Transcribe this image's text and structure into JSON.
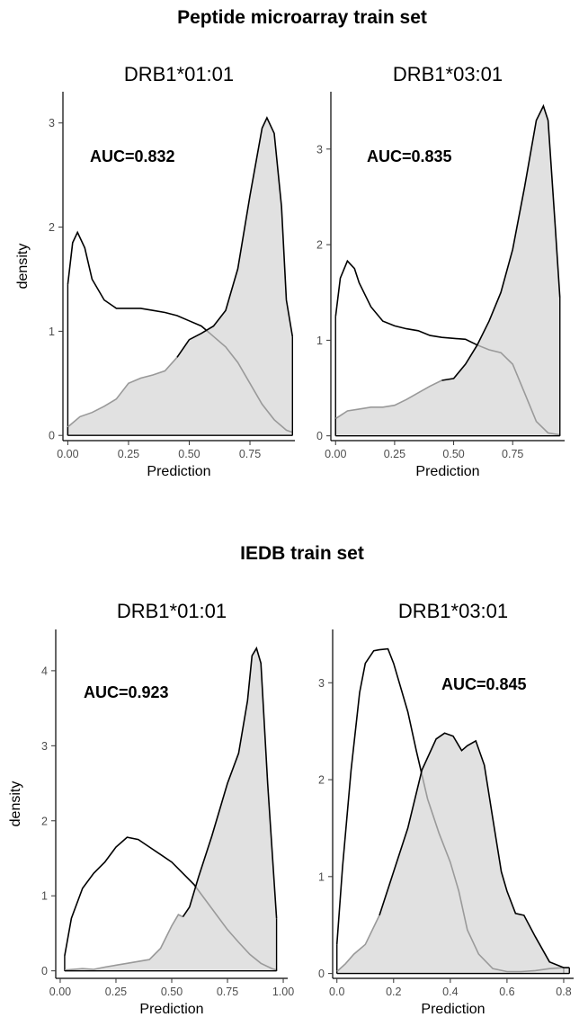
{
  "sections": [
    {
      "title": "Peptide microarray train set"
    },
    {
      "title": "IEDB train set"
    }
  ],
  "chart_data": [
    {
      "type": "area",
      "section": 0,
      "title": "DRB1*01:01",
      "xlabel": "Prediction",
      "ylabel": "density",
      "annotation": "AUC=0.832",
      "xlim": [
        -0.02,
        0.935
      ],
      "ylim": [
        -0.05,
        3.3
      ],
      "x_ticks": [
        0.0,
        0.25,
        0.5,
        0.75
      ],
      "x_tick_labels": [
        "0.00",
        "0.25",
        "0.50",
        "0.75"
      ],
      "y_ticks": [
        0,
        1,
        2,
        3
      ],
      "y_tick_labels": [
        "0",
        "1",
        "2",
        "3"
      ],
      "series": [
        {
          "x": [
            0.0,
            0.02,
            0.04,
            0.07,
            0.1,
            0.15,
            0.2,
            0.25,
            0.3,
            0.35,
            0.4,
            0.45,
            0.5,
            0.55,
            0.6,
            0.65,
            0.7,
            0.75,
            0.8,
            0.85,
            0.9,
            0.925
          ],
          "values": [
            1.45,
            1.85,
            1.95,
            1.8,
            1.5,
            1.3,
            1.22,
            1.22,
            1.22,
            1.2,
            1.18,
            1.15,
            1.1,
            1.05,
            0.95,
            0.85,
            0.7,
            0.5,
            0.3,
            0.15,
            0.05,
            0.03
          ],
          "fill": "#ffffff",
          "stroke": "#000000"
        },
        {
          "x": [
            0.0,
            0.05,
            0.1,
            0.15,
            0.2,
            0.25,
            0.3,
            0.35,
            0.4,
            0.45,
            0.5,
            0.55,
            0.6,
            0.65,
            0.7,
            0.75,
            0.8,
            0.82,
            0.85,
            0.88,
            0.9,
            0.925
          ],
          "values": [
            0.08,
            0.18,
            0.22,
            0.28,
            0.35,
            0.5,
            0.55,
            0.58,
            0.62,
            0.75,
            0.92,
            0.98,
            1.05,
            1.2,
            1.6,
            2.3,
            2.95,
            3.05,
            2.9,
            2.2,
            1.3,
            0.95
          ],
          "fill": "#d6d6d6",
          "stroke": "#000000",
          "light_stroke": "#999999"
        }
      ]
    },
    {
      "type": "area",
      "section": 0,
      "title": "DRB1*03:01",
      "xlabel": "Prediction",
      "ylabel": "",
      "annotation": "AUC=0.835",
      "xlim": [
        -0.02,
        0.97
      ],
      "ylim": [
        -0.05,
        3.6
      ],
      "x_ticks": [
        0.0,
        0.25,
        0.5,
        0.75
      ],
      "x_tick_labels": [
        "0.00",
        "0.25",
        "0.50",
        "0.75"
      ],
      "y_ticks": [
        0,
        1,
        2,
        3
      ],
      "y_tick_labels": [
        "0",
        "1",
        "2",
        "3"
      ],
      "series": [
        {
          "x": [
            0.0,
            0.02,
            0.05,
            0.08,
            0.1,
            0.15,
            0.2,
            0.25,
            0.3,
            0.35,
            0.4,
            0.45,
            0.5,
            0.55,
            0.6,
            0.65,
            0.7,
            0.75,
            0.8,
            0.85,
            0.9,
            0.95
          ],
          "values": [
            1.25,
            1.65,
            1.83,
            1.75,
            1.6,
            1.35,
            1.2,
            1.15,
            1.12,
            1.1,
            1.05,
            1.03,
            1.02,
            1.01,
            0.95,
            0.9,
            0.87,
            0.75,
            0.45,
            0.15,
            0.03,
            0.01
          ],
          "fill": "#ffffff",
          "stroke": "#000000"
        },
        {
          "x": [
            0.0,
            0.05,
            0.1,
            0.15,
            0.2,
            0.25,
            0.3,
            0.35,
            0.4,
            0.45,
            0.5,
            0.55,
            0.6,
            0.65,
            0.7,
            0.75,
            0.8,
            0.85,
            0.88,
            0.9,
            0.93,
            0.95
          ],
          "values": [
            0.18,
            0.26,
            0.28,
            0.3,
            0.3,
            0.32,
            0.38,
            0.45,
            0.52,
            0.58,
            0.6,
            0.75,
            0.95,
            1.2,
            1.5,
            1.95,
            2.6,
            3.3,
            3.45,
            3.3,
            2.2,
            1.45
          ],
          "fill": "#d6d6d6",
          "stroke": "#000000",
          "light_stroke": "#999999"
        }
      ]
    },
    {
      "type": "area",
      "section": 1,
      "title": "DRB1*01:01",
      "xlabel": "Prediction",
      "ylabel": "density",
      "annotation": "AUC=0.923",
      "xlim": [
        -0.02,
        1.02
      ],
      "ylim": [
        -0.1,
        4.55
      ],
      "x_ticks": [
        0.0,
        0.25,
        0.5,
        0.75,
        1.0
      ],
      "x_tick_labels": [
        "0.00",
        "0.25",
        "0.50",
        "0.75",
        "1.00"
      ],
      "y_ticks": [
        0,
        1,
        2,
        3,
        4
      ],
      "y_tick_labels": [
        "0",
        "1",
        "2",
        "3",
        "4"
      ],
      "series": [
        {
          "x": [
            0.02,
            0.05,
            0.1,
            0.15,
            0.2,
            0.25,
            0.3,
            0.35,
            0.4,
            0.45,
            0.5,
            0.55,
            0.6,
            0.65,
            0.7,
            0.75,
            0.8,
            0.85,
            0.9,
            0.95,
            0.97
          ],
          "values": [
            0.2,
            0.7,
            1.1,
            1.3,
            1.45,
            1.65,
            1.78,
            1.75,
            1.65,
            1.55,
            1.45,
            1.3,
            1.15,
            0.95,
            0.75,
            0.55,
            0.38,
            0.22,
            0.1,
            0.03,
            0.01
          ],
          "fill": "#ffffff",
          "stroke": "#000000"
        },
        {
          "x": [
            0.02,
            0.1,
            0.15,
            0.2,
            0.3,
            0.4,
            0.45,
            0.5,
            0.53,
            0.55,
            0.58,
            0.62,
            0.68,
            0.72,
            0.75,
            0.8,
            0.84,
            0.86,
            0.88,
            0.9,
            0.93,
            0.97
          ],
          "values": [
            0.01,
            0.03,
            0.02,
            0.05,
            0.1,
            0.15,
            0.3,
            0.6,
            0.75,
            0.72,
            0.85,
            1.25,
            1.8,
            2.2,
            2.5,
            2.9,
            3.6,
            4.2,
            4.3,
            4.1,
            2.5,
            0.7
          ],
          "fill": "#d6d6d6",
          "stroke": "#000000",
          "light_stroke": "#999999"
        }
      ]
    },
    {
      "type": "area",
      "section": 1,
      "title": "DRB1*03:01",
      "xlabel": "Prediction",
      "ylabel": "",
      "annotation": "AUC=0.845",
      "xlim": [
        -0.015,
        0.835
      ],
      "ylim": [
        -0.05,
        3.55
      ],
      "x_ticks": [
        0.0,
        0.2,
        0.4,
        0.6,
        0.8
      ],
      "x_tick_labels": [
        "0.0",
        "0.2",
        "0.4",
        "0.6",
        "0.8"
      ],
      "y_ticks": [
        0,
        1,
        2,
        3
      ],
      "y_tick_labels": [
        "0",
        "1",
        "2",
        "3"
      ],
      "series": [
        {
          "x": [
            0.0,
            0.02,
            0.05,
            0.08,
            0.1,
            0.13,
            0.15,
            0.18,
            0.2,
            0.25,
            0.28,
            0.32,
            0.36,
            0.4,
            0.43,
            0.46,
            0.5,
            0.55,
            0.6,
            0.65,
            0.7,
            0.75,
            0.8
          ],
          "values": [
            0.3,
            1.1,
            2.1,
            2.9,
            3.2,
            3.33,
            3.34,
            3.35,
            3.2,
            2.7,
            2.3,
            1.8,
            1.45,
            1.15,
            0.85,
            0.45,
            0.2,
            0.05,
            0.02,
            0.02,
            0.03,
            0.05,
            0.06
          ],
          "fill": "#ffffff",
          "stroke": "#000000"
        },
        {
          "x": [
            0.0,
            0.03,
            0.06,
            0.1,
            0.15,
            0.2,
            0.25,
            0.3,
            0.35,
            0.38,
            0.41,
            0.44,
            0.46,
            0.49,
            0.52,
            0.55,
            0.58,
            0.6,
            0.63,
            0.66,
            0.7,
            0.75,
            0.8,
            0.82
          ],
          "values": [
            0.02,
            0.1,
            0.2,
            0.3,
            0.6,
            1.05,
            1.5,
            2.1,
            2.42,
            2.48,
            2.45,
            2.3,
            2.35,
            2.4,
            2.15,
            1.6,
            1.05,
            0.85,
            0.62,
            0.6,
            0.38,
            0.12,
            0.06,
            0.06
          ],
          "fill": "#d6d6d6",
          "stroke": "#000000",
          "light_stroke": "#999999"
        }
      ]
    }
  ]
}
